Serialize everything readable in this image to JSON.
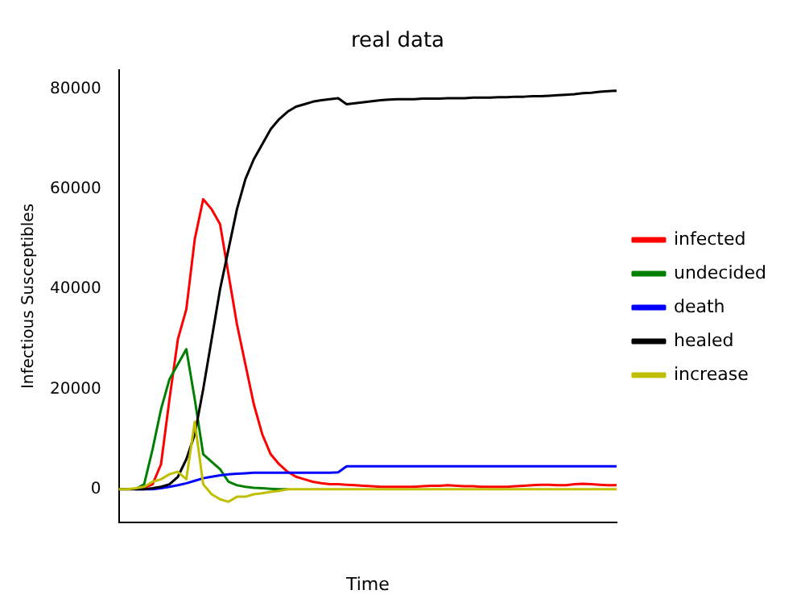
{
  "chart_data": {
    "type": "line",
    "title": "real data",
    "xlabel": "Time",
    "ylabel": "Infectious Susceptibles",
    "categories": [
      null,
      null,
      null,
      null,
      null,
      null,
      null,
      null,
      null,
      null,
      null,
      null,
      null,
      null,
      null,
      null,
      null,
      null,
      null,
      null,
      null,
      null,
      null,
      null,
      null,
      null,
      null,
      null,
      null,
      null,
      null,
      null,
      null,
      null,
      null,
      null,
      null,
      null,
      null,
      null,
      null,
      null,
      null,
      null,
      null,
      null,
      null,
      null,
      null,
      null,
      null,
      null,
      null,
      null,
      null,
      null,
      null,
      null,
      null,
      null
    ],
    "series": [
      {
        "name": "infected",
        "color": "#ff0000",
        "values": [
          null,
          null,
          0,
          300,
          1000,
          5000,
          18000,
          30000,
          36000,
          50000,
          58000,
          56000,
          53000,
          43000,
          33000,
          25000,
          17000,
          11000,
          7000,
          5000,
          3500,
          2500,
          2000,
          1500,
          1200,
          1000,
          1000,
          900,
          800,
          700,
          600,
          500,
          500,
          500,
          500,
          500,
          600,
          700,
          700,
          800,
          700,
          600,
          600,
          500,
          500,
          500,
          500,
          600,
          700,
          800,
          900,
          900,
          800,
          800,
          1000,
          1100,
          1000,
          900,
          800,
          800
        ]
      },
      {
        "name": "undecided",
        "color": "#008000",
        "values": [
          null,
          null,
          0,
          1000,
          8000,
          16000,
          22000,
          25000,
          28000,
          18000,
          7000,
          5500,
          4000,
          1500,
          800,
          500,
          300,
          200,
          100,
          0,
          0,
          null,
          null,
          null,
          null,
          null,
          null,
          null,
          null,
          null,
          null,
          null,
          null,
          null,
          null,
          null,
          null,
          null,
          null,
          null,
          null,
          null,
          null,
          null,
          null,
          null,
          null,
          null,
          null,
          null,
          null,
          null,
          null,
          null,
          null,
          null,
          null,
          null,
          null,
          null
        ]
      },
      {
        "name": "death",
        "color": "#0000ff",
        "values": [
          null,
          null,
          0,
          0,
          0,
          200,
          500,
          800,
          1200,
          1700,
          2200,
          2500,
          2800,
          3000,
          3100,
          3200,
          3300,
          3300,
          3300,
          3300,
          3300,
          3300,
          3300,
          3300,
          3300,
          3300,
          3400,
          4600,
          4600,
          4600,
          4600,
          4600,
          4600,
          4600,
          4600,
          4600,
          4600,
          4600,
          4600,
          4600,
          4600,
          4600,
          4600,
          4600,
          4600,
          4600,
          4600,
          4600,
          4600,
          4600,
          4600,
          4600,
          4600,
          4600,
          4600,
          4600,
          4600,
          4600,
          4600,
          4600
        ]
      },
      {
        "name": "healed",
        "color": "#000000",
        "values": [
          0,
          0,
          0,
          0,
          200,
          500,
          1000,
          2500,
          6000,
          11000,
          20000,
          30000,
          40000,
          48000,
          56000,
          62000,
          66000,
          69000,
          72000,
          74000,
          75500,
          76500,
          77000,
          77500,
          77800,
          78000,
          78200,
          77000,
          77200,
          77400,
          77600,
          77800,
          77900,
          78000,
          78000,
          78000,
          78100,
          78100,
          78100,
          78200,
          78200,
          78200,
          78300,
          78300,
          78300,
          78400,
          78400,
          78500,
          78500,
          78600,
          78600,
          78700,
          78800,
          78900,
          79000,
          79200,
          79300,
          79500,
          79600,
          79700
        ]
      },
      {
        "name": "increase",
        "color": "#bfbf00",
        "values": [
          0,
          0,
          200,
          500,
          1500,
          2000,
          3000,
          3500,
          2000,
          13500,
          1000,
          -1000,
          -2000,
          -2500,
          -1500,
          -1500,
          -1000,
          -800,
          -500,
          -300,
          0,
          0,
          0,
          0,
          0,
          0,
          0,
          0,
          0,
          0,
          0,
          0,
          0,
          0,
          0,
          0,
          0,
          0,
          0,
          0,
          0,
          0,
          0,
          0,
          0,
          0,
          0,
          0,
          0,
          0,
          0,
          0,
          0,
          0,
          0,
          0,
          0,
          0,
          0,
          0
        ]
      }
    ],
    "ylim": [
      -6600,
      83800
    ],
    "yticks": [
      0,
      20000,
      40000,
      60000,
      80000
    ],
    "grid": false,
    "legend": "right",
    "marker": "none",
    "line_style": "solid"
  }
}
